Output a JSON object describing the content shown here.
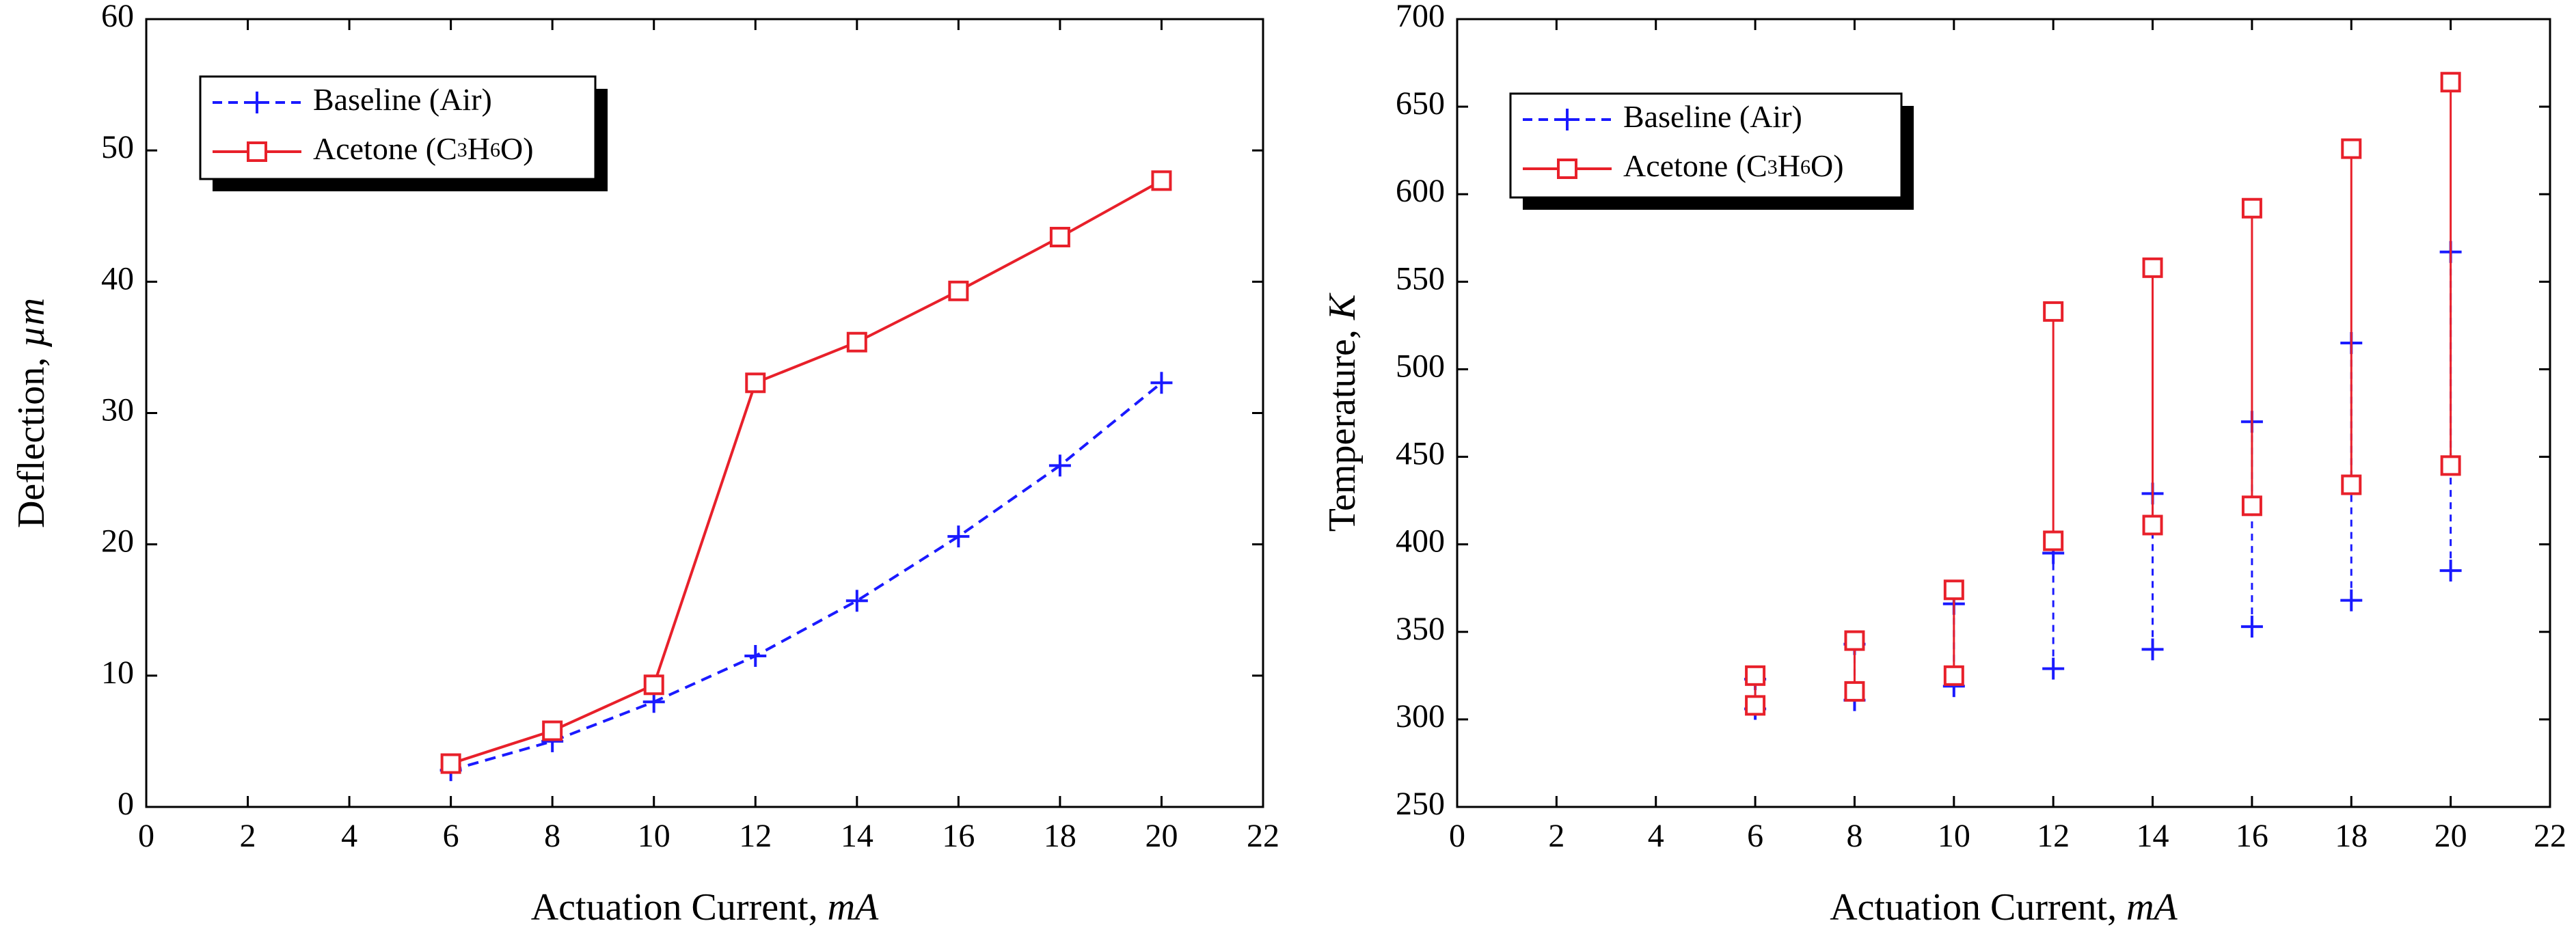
{
  "chart_data": [
    {
      "type": "line",
      "title": "",
      "xlabel": "Actuation Current,",
      "xlabel_unit": "mA",
      "ylabel": "Deflection,",
      "ylabel_unit": "µm",
      "xlim": [
        0,
        22
      ],
      "ylim": [
        0,
        60
      ],
      "xticks": [
        "0",
        "2",
        "4",
        "6",
        "8",
        "10",
        "12",
        "14",
        "16",
        "18",
        "20",
        "22"
      ],
      "yticks": [
        "0",
        "10",
        "20",
        "30",
        "40",
        "50",
        "60"
      ],
      "legend_position": "top-left",
      "series": [
        {
          "name": "Baseline (Air)",
          "color": "#1a1aff",
          "marker": "plus",
          "line": "dashed",
          "x": [
            6,
            8,
            10,
            12,
            14,
            16,
            18,
            20
          ],
          "values": [
            2.8,
            5.0,
            8.0,
            11.5,
            15.7,
            20.6,
            26.0,
            32.3
          ]
        },
        {
          "name": "Acetone (C3H6O)",
          "legend": {
            "prefix": "Acetone (C",
            "s1": "3",
            "mid1": "H",
            "s2": "6",
            "suffix": "O)"
          },
          "color": "#e8202a",
          "marker": "square",
          "line": "solid",
          "x": [
            6,
            8,
            10,
            12,
            14,
            16,
            18,
            20
          ],
          "values": [
            3.3,
            5.8,
            9.3,
            32.3,
            35.4,
            39.3,
            43.4,
            47.7
          ]
        }
      ]
    },
    {
      "type": "scatter",
      "title": "",
      "xlabel": "Actuation Current,",
      "xlabel_unit": "mA",
      "ylabel": "Temperature,",
      "ylabel_unit": "K",
      "xlim": [
        0,
        22
      ],
      "ylim": [
        250,
        700
      ],
      "xticks": [
        "0",
        "2",
        "4",
        "6",
        "8",
        "10",
        "12",
        "14",
        "16",
        "18",
        "20",
        "22"
      ],
      "yticks": [
        "250",
        "300",
        "350",
        "400",
        "450",
        "500",
        "550",
        "600",
        "650",
        "700"
      ],
      "legend_position": "top-left",
      "series": [
        {
          "name": "Baseline (Air)",
          "color": "#1a1aff",
          "marker": "plus",
          "line": "dashed-range",
          "x": [
            6,
            8,
            10,
            12,
            14,
            16,
            18,
            20
          ],
          "low": [
            306,
            311,
            319,
            329,
            340,
            353,
            368,
            385
          ],
          "high": [
            323,
            343,
            366,
            395,
            429,
            470,
            515,
            567
          ]
        },
        {
          "name": "Acetone (C3H6O)",
          "legend": {
            "prefix": "Acetone (C",
            "s1": "3",
            "mid1": "H",
            "s2": "6",
            "suffix": "O)"
          },
          "color": "#e8202a",
          "marker": "square",
          "line": "solid-range",
          "x": [
            6,
            8,
            10,
            12,
            14,
            16,
            18,
            20
          ],
          "low": [
            308,
            316,
            325,
            402,
            411,
            422,
            434,
            445
          ],
          "high": [
            325,
            345,
            374,
            533,
            558,
            592,
            626,
            664
          ]
        }
      ]
    }
  ]
}
